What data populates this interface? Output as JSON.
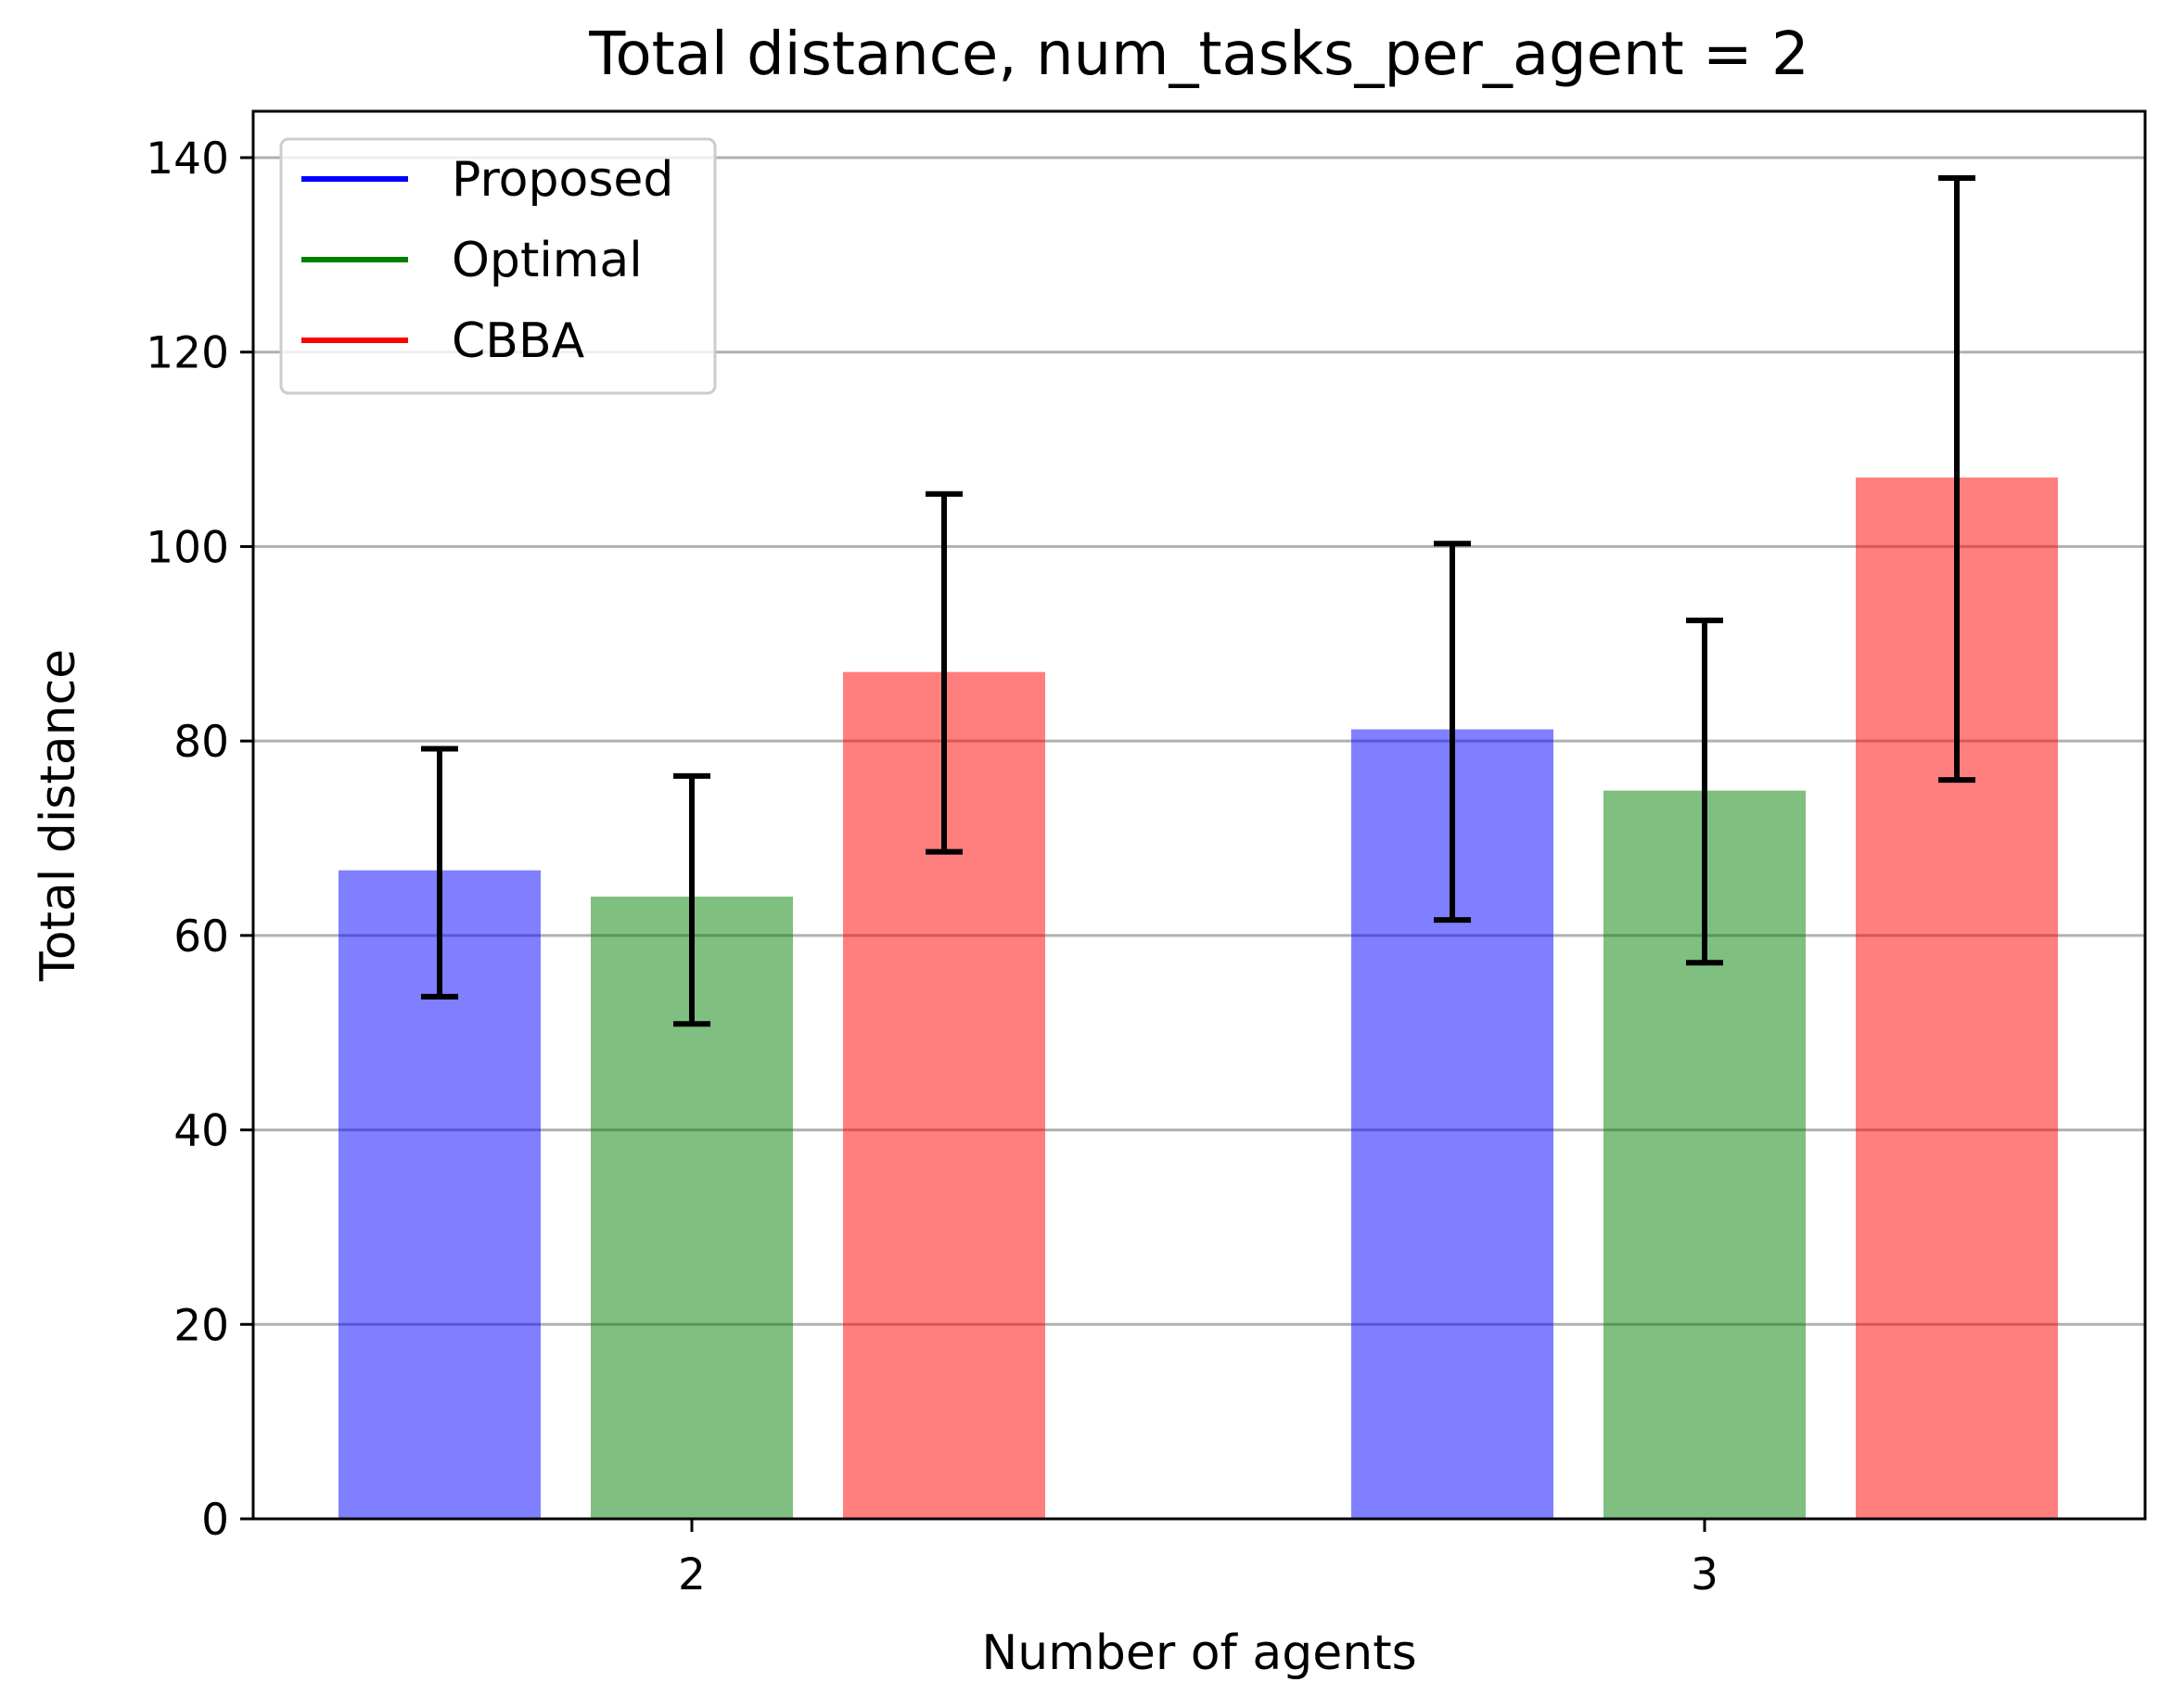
{
  "chart_data": {
    "type": "bar",
    "title": "Total distance, num_tasks_per_agent = 2",
    "xlabel": "Number of agents",
    "ylabel": "Total distance",
    "categories": [
      "2",
      "3"
    ],
    "ylim": [
      0,
      140
    ],
    "yticks": [
      0,
      20,
      40,
      60,
      80,
      100,
      120,
      140
    ],
    "grid": "horizontal",
    "legend_position": "upper-left",
    "series": [
      {
        "name": "Proposed",
        "color": "#0000ff",
        "values": [
          66.7,
          81.2
        ],
        "error_low": [
          53.7,
          61.6
        ],
        "error_high": [
          79.2,
          100.3
        ]
      },
      {
        "name": "Optimal",
        "color": "#008000",
        "values": [
          64.0,
          74.9
        ],
        "error_low": [
          50.9,
          57.2
        ],
        "error_high": [
          76.4,
          92.4
        ]
      },
      {
        "name": "CBBA",
        "color": "#ff0000",
        "values": [
          87.1,
          107.1
        ],
        "error_low": [
          68.6,
          76.0
        ],
        "error_high": [
          105.4,
          137.9
        ]
      }
    ],
    "bar_opacity": 0.5
  }
}
